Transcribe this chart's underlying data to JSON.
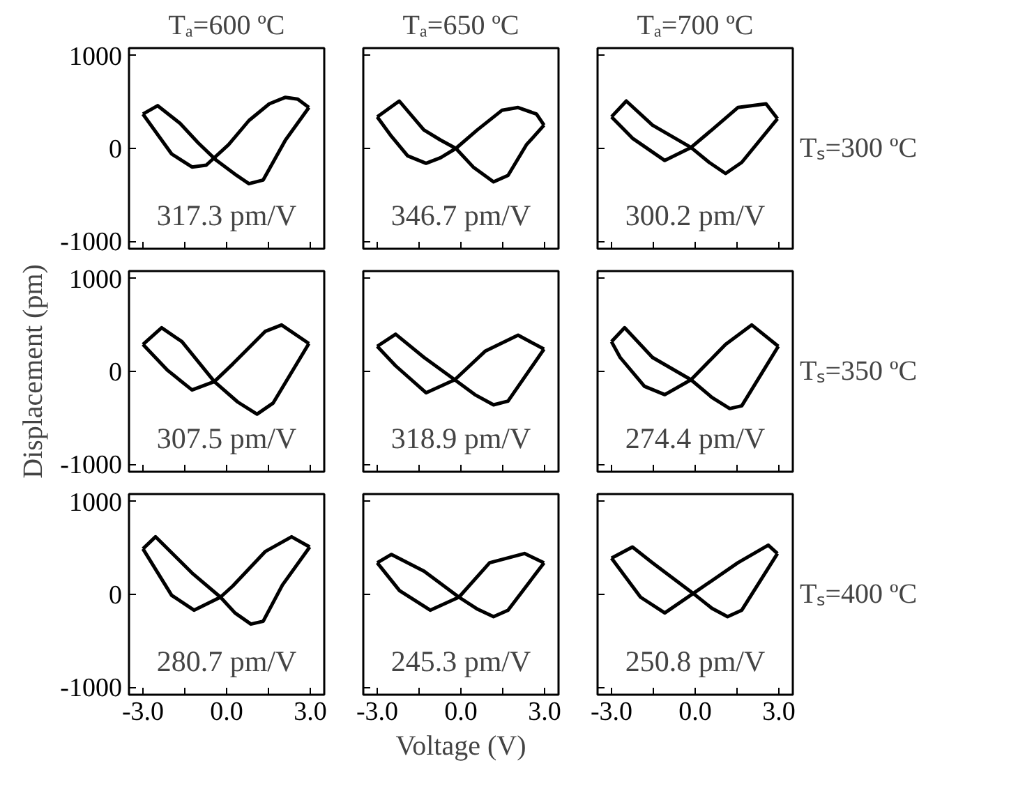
{
  "chart_data": [
    {
      "type": "line",
      "title": "Tₐ=600 ºC",
      "series": [
        {
          "color": "#000000",
          "x": [
            -3.0,
            -2.47,
            -1.67,
            -1.02,
            -0.36,
            0.36,
            0.8,
            1.31,
            2.11,
            2.95
          ],
          "values": [
            370,
            460,
            270,
            60,
            -130,
            -290,
            -380,
            -340,
            90,
            440
          ]
        },
        {
          "color": "#000000",
          "x": [
            -3.0,
            -1.97,
            -1.24,
            -0.73,
            0.07,
            0.8,
            1.53,
            2.11,
            2.55,
            2.95
          ],
          "values": [
            370,
            -60,
            -200,
            -180,
            40,
            300,
            480,
            550,
            530,
            440
          ]
        }
      ],
      "xlim": [
        -3.5,
        3.5
      ],
      "ylim": [
        -1080,
        1080
      ],
      "xticks": [
        -3,
        -1.5,
        0,
        1.5,
        3
      ],
      "yticks": [
        -1000,
        0,
        1000
      ],
      "tick_labels": "y",
      "marker": "none",
      "line_style": "solid",
      "annotations": [
        "317.3 pm/V"
      ]
    },
    {
      "type": "line",
      "title": "Tₐ=650 ºC",
      "series": [
        {
          "color": "#000000",
          "x": [
            -3.0,
            -2.21,
            -1.33,
            -0.73,
            -0.18,
            0.44,
            1.17,
            1.69,
            2.35,
            2.98
          ],
          "values": [
            340,
            510,
            200,
            90,
            0,
            -200,
            -360,
            -290,
            40,
            250
          ]
        },
        {
          "color": "#000000",
          "x": [
            -3.0,
            -2.49,
            -1.91,
            -1.25,
            -0.73,
            -0.18,
            0.59,
            1.47,
            2.05,
            2.71,
            2.98
          ],
          "values": [
            340,
            130,
            -80,
            -160,
            -100,
            0,
            200,
            410,
            440,
            370,
            250
          ]
        }
      ],
      "xlim": [
        -3.5,
        3.5
      ],
      "ylim": [
        -1080,
        1080
      ],
      "xticks": [
        -3,
        -1.5,
        0,
        1.5,
        3
      ],
      "yticks": [
        -1000,
        0,
        1000
      ],
      "tick_labels": false,
      "marker": "none",
      "line_style": "solid",
      "annotations": [
        "346.7 pm/V"
      ]
    },
    {
      "type": "line",
      "title": "Tₐ=700 ºC",
      "y2label": "Tₛ=300 ºC",
      "series": [
        {
          "color": "#000000",
          "x": [
            -3.0,
            -2.47,
            -1.53,
            -0.15,
            0.5,
            1.09,
            1.67,
            2.95
          ],
          "values": [
            340,
            510,
            250,
            10,
            -150,
            -270,
            -150,
            320
          ]
        },
        {
          "color": "#000000",
          "x": [
            -3.0,
            -2.25,
            -1.09,
            -0.15,
            0.6,
            1.53,
            2.54,
            2.95
          ],
          "values": [
            340,
            110,
            -130,
            10,
            200,
            440,
            480,
            320
          ]
        }
      ],
      "xlim": [
        -3.5,
        3.5
      ],
      "ylim": [
        -1080,
        1080
      ],
      "xticks": [
        -3,
        -1.5,
        0,
        1.5,
        3
      ],
      "yticks": [
        -1000,
        0,
        1000
      ],
      "tick_labels": false,
      "marker": "none",
      "line_style": "solid",
      "annotations": [
        "300.2 pm/V"
      ]
    },
    {
      "type": "line",
      "ylabel": "Displacement (pm)",
      "series": [
        {
          "color": "#000000",
          "x": [
            -3.0,
            -2.33,
            -1.6,
            -0.44,
            0.4,
            1.09,
            1.67,
            2.95
          ],
          "values": [
            290,
            470,
            320,
            -110,
            -330,
            -460,
            -340,
            300
          ]
        },
        {
          "color": "#000000",
          "x": [
            -3.0,
            -2.11,
            -1.24,
            -0.44,
            0.22,
            1.38,
            1.97,
            2.95
          ],
          "values": [
            290,
            10,
            -200,
            -110,
            80,
            430,
            500,
            300
          ]
        }
      ],
      "xlim": [
        -3.5,
        3.5
      ],
      "ylim": [
        -1080,
        1080
      ],
      "xticks": [
        -3,
        -1.5,
        0,
        1.5,
        3
      ],
      "yticks": [
        -1000,
        0,
        1000
      ],
      "tick_labels": "y",
      "marker": "none",
      "line_style": "solid",
      "annotations": [
        "307.5 pm/V"
      ]
    },
    {
      "type": "line",
      "series": [
        {
          "color": "#000000",
          "x": [
            -3.0,
            -2.34,
            -1.32,
            -0.22,
            0.5,
            1.17,
            1.69,
            2.98
          ],
          "values": [
            270,
            400,
            150,
            -90,
            -250,
            -360,
            -320,
            240
          ]
        },
        {
          "color": "#000000",
          "x": [
            -3.0,
            -2.34,
            -1.25,
            -0.22,
            0.88,
            2.05,
            2.98
          ],
          "values": [
            270,
            60,
            -230,
            -90,
            220,
            390,
            240
          ]
        }
      ],
      "xlim": [
        -3.5,
        3.5
      ],
      "ylim": [
        -1080,
        1080
      ],
      "xticks": [
        -3,
        -1.5,
        0,
        1.5,
        3
      ],
      "yticks": [
        -1000,
        0,
        1000
      ],
      "tick_labels": false,
      "marker": "none",
      "line_style": "solid",
      "annotations": [
        "318.9 pm/V"
      ]
    },
    {
      "type": "line",
      "y2label": "Tₛ=350 ºC",
      "series": [
        {
          "color": "#000000",
          "x": [
            -3.0,
            -2.53,
            -1.53,
            -0.15,
            0.6,
            1.24,
            1.67,
            2.98
          ],
          "values": [
            320,
            470,
            150,
            -90,
            -280,
            -400,
            -370,
            270
          ]
        },
        {
          "color": "#000000",
          "x": [
            -3.0,
            -2.69,
            -1.82,
            -1.09,
            -0.15,
            1.09,
            2.03,
            2.98
          ],
          "values": [
            320,
            150,
            -160,
            -250,
            -90,
            290,
            500,
            270
          ]
        }
      ],
      "xlim": [
        -3.5,
        3.5
      ],
      "ylim": [
        -1080,
        1080
      ],
      "xticks": [
        -3,
        -1.5,
        0,
        1.5,
        3
      ],
      "yticks": [
        -1000,
        0,
        1000
      ],
      "tick_labels": false,
      "marker": "none",
      "line_style": "solid",
      "annotations": [
        "274.4 pm/V"
      ]
    },
    {
      "type": "line",
      "series": [
        {
          "color": "#000000",
          "x": [
            -3.0,
            -2.55,
            -1.24,
            -0.22,
            0.3,
            0.87,
            1.31,
            2.0,
            2.98
          ],
          "values": [
            490,
            620,
            230,
            -30,
            -200,
            -320,
            -290,
            100,
            510
          ]
        },
        {
          "color": "#000000",
          "x": [
            -3.0,
            -1.97,
            -1.17,
            -0.22,
            0.22,
            1.38,
            2.33,
            2.98
          ],
          "values": [
            490,
            -10,
            -170,
            -30,
            90,
            460,
            620,
            510
          ]
        }
      ],
      "xlim": [
        -3.5,
        3.5
      ],
      "ylim": [
        -1080,
        1080
      ],
      "xticks": [
        {
          "value": -3,
          "label": "-3.0"
        },
        {
          "value": -1.5,
          "label": null
        },
        {
          "value": 0,
          "label": "0.0"
        },
        {
          "value": 1.5,
          "label": null
        },
        {
          "value": 3,
          "label": "3.0"
        }
      ],
      "yticks": [
        -1000,
        0,
        1000
      ],
      "marker": "none",
      "line_style": "solid",
      "annotations": [
        "280.7 pm/V"
      ]
    },
    {
      "type": "line",
      "xlabel": "Voltage (V)",
      "series": [
        {
          "color": "#000000",
          "x": [
            -3.0,
            -2.49,
            -1.32,
            -0.07,
            0.6,
            1.17,
            1.69,
            2.98
          ],
          "values": [
            340,
            430,
            250,
            -30,
            -160,
            -240,
            -170,
            340
          ]
        },
        {
          "color": "#000000",
          "x": [
            -3.0,
            -2.2,
            -1.1,
            -0.07,
            1.03,
            2.28,
            2.98
          ],
          "values": [
            340,
            40,
            -170,
            -30,
            340,
            440,
            340
          ]
        }
      ],
      "xlim": [
        -3.5,
        3.5
      ],
      "ylim": [
        -1080,
        1080
      ],
      "xticks": [
        {
          "value": -3,
          "label": "-3.0"
        },
        {
          "value": -1.5,
          "label": null
        },
        {
          "value": 0,
          "label": "0.0"
        },
        {
          "value": 1.5,
          "label": null
        },
        {
          "value": 3,
          "label": "3.0"
        }
      ],
      "yticks": [
        -1000,
        0,
        1000
      ],
      "tick_labels": "x",
      "marker": "none",
      "line_style": "solid",
      "annotations": [
        "245.3 pm/V"
      ]
    },
    {
      "type": "line",
      "y2label": "Tₛ=400 ºC",
      "series": [
        {
          "color": "#000000",
          "x": [
            -3.0,
            -2.25,
            -1.53,
            -0.07,
            0.6,
            1.16,
            1.67,
            2.95
          ],
          "values": [
            390,
            510,
            340,
            10,
            -150,
            -240,
            -170,
            440
          ]
        },
        {
          "color": "#000000",
          "x": [
            -3.0,
            -1.96,
            -1.09,
            -0.07,
            1.53,
            2.62,
            2.95
          ],
          "values": [
            390,
            -30,
            -200,
            10,
            340,
            530,
            440
          ]
        }
      ],
      "xlim": [
        -3.5,
        3.5
      ],
      "ylim": [
        -1080,
        1080
      ],
      "xticks": [
        {
          "value": -3,
          "label": "-3.0"
        },
        {
          "value": -1.5,
          "label": null
        },
        {
          "value": 0,
          "label": "0.0"
        },
        {
          "value": 1.5,
          "label": null
        },
        {
          "value": 3,
          "label": "3.0"
        }
      ],
      "yticks": [
        -1000,
        0,
        1000
      ],
      "tick_labels": "x",
      "marker": "none",
      "line_style": "solid",
      "annotations": [
        "250.8 pm/V"
      ]
    }
  ]
}
